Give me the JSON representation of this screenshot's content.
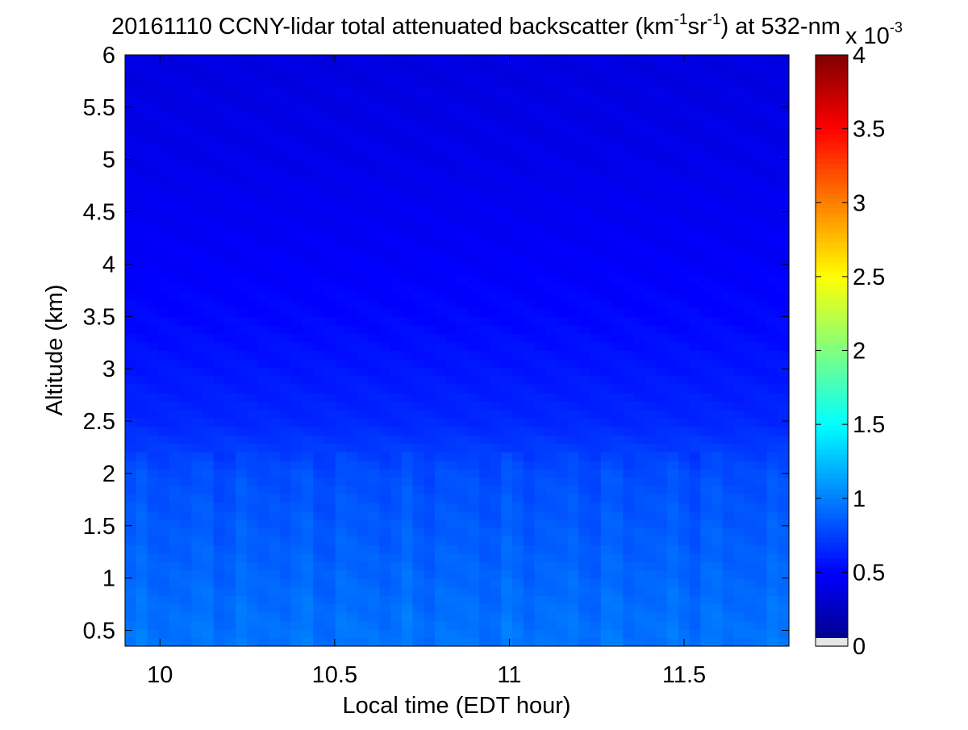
{
  "chart_data": {
    "type": "heatmap",
    "title": {
      "prefix": "20161110 CCNY-lidar total attenuated backscatter (km",
      "sup1": "-1",
      "mid": "sr",
      "sup2": "-1",
      "suffix": ") at 532-nm"
    },
    "xlabel": "Local time (EDT hour)",
    "ylabel": "Altitude (km)",
    "xlim": [
      9.9,
      11.8
    ],
    "ylim": [
      0.35,
      6
    ],
    "x_ticks": [
      10,
      10.5,
      11,
      11.5
    ],
    "x_tick_labels": [
      "10",
      "10.5",
      "11",
      "11.5"
    ],
    "y_ticks": [
      0.5,
      1,
      1.5,
      2,
      2.5,
      3,
      3.5,
      4,
      4.5,
      5,
      5.5,
      6
    ],
    "y_tick_labels": [
      "0.5",
      "1",
      "1.5",
      "2",
      "2.5",
      "3",
      "3.5",
      "4",
      "4.5",
      "5",
      "5.5",
      "6"
    ],
    "colormap": "jet",
    "colorbar": {
      "range": [
        0,
        4
      ],
      "ticks": [
        0,
        0.5,
        1,
        1.5,
        2,
        2.5,
        3,
        3.5,
        4
      ],
      "tick_labels": [
        "0",
        "0.5",
        "1",
        "1.5",
        "2",
        "2.5",
        "3",
        "3.5",
        "4"
      ],
      "exponent_base": "x 10",
      "exponent": "-3",
      "below_range_color": "#e6e6e6"
    },
    "field_profile": {
      "altitude_km": [
        0.35,
        0.5,
        1.0,
        1.5,
        2.0,
        2.5,
        3.0,
        3.5,
        4.0,
        4.5,
        5.0,
        5.5,
        6.0
      ],
      "backscatter_e3": [
        0.95,
        0.95,
        0.9,
        0.85,
        0.8,
        0.65,
        0.58,
        0.52,
        0.48,
        0.45,
        0.42,
        0.4,
        0.38
      ]
    },
    "grid": false
  }
}
